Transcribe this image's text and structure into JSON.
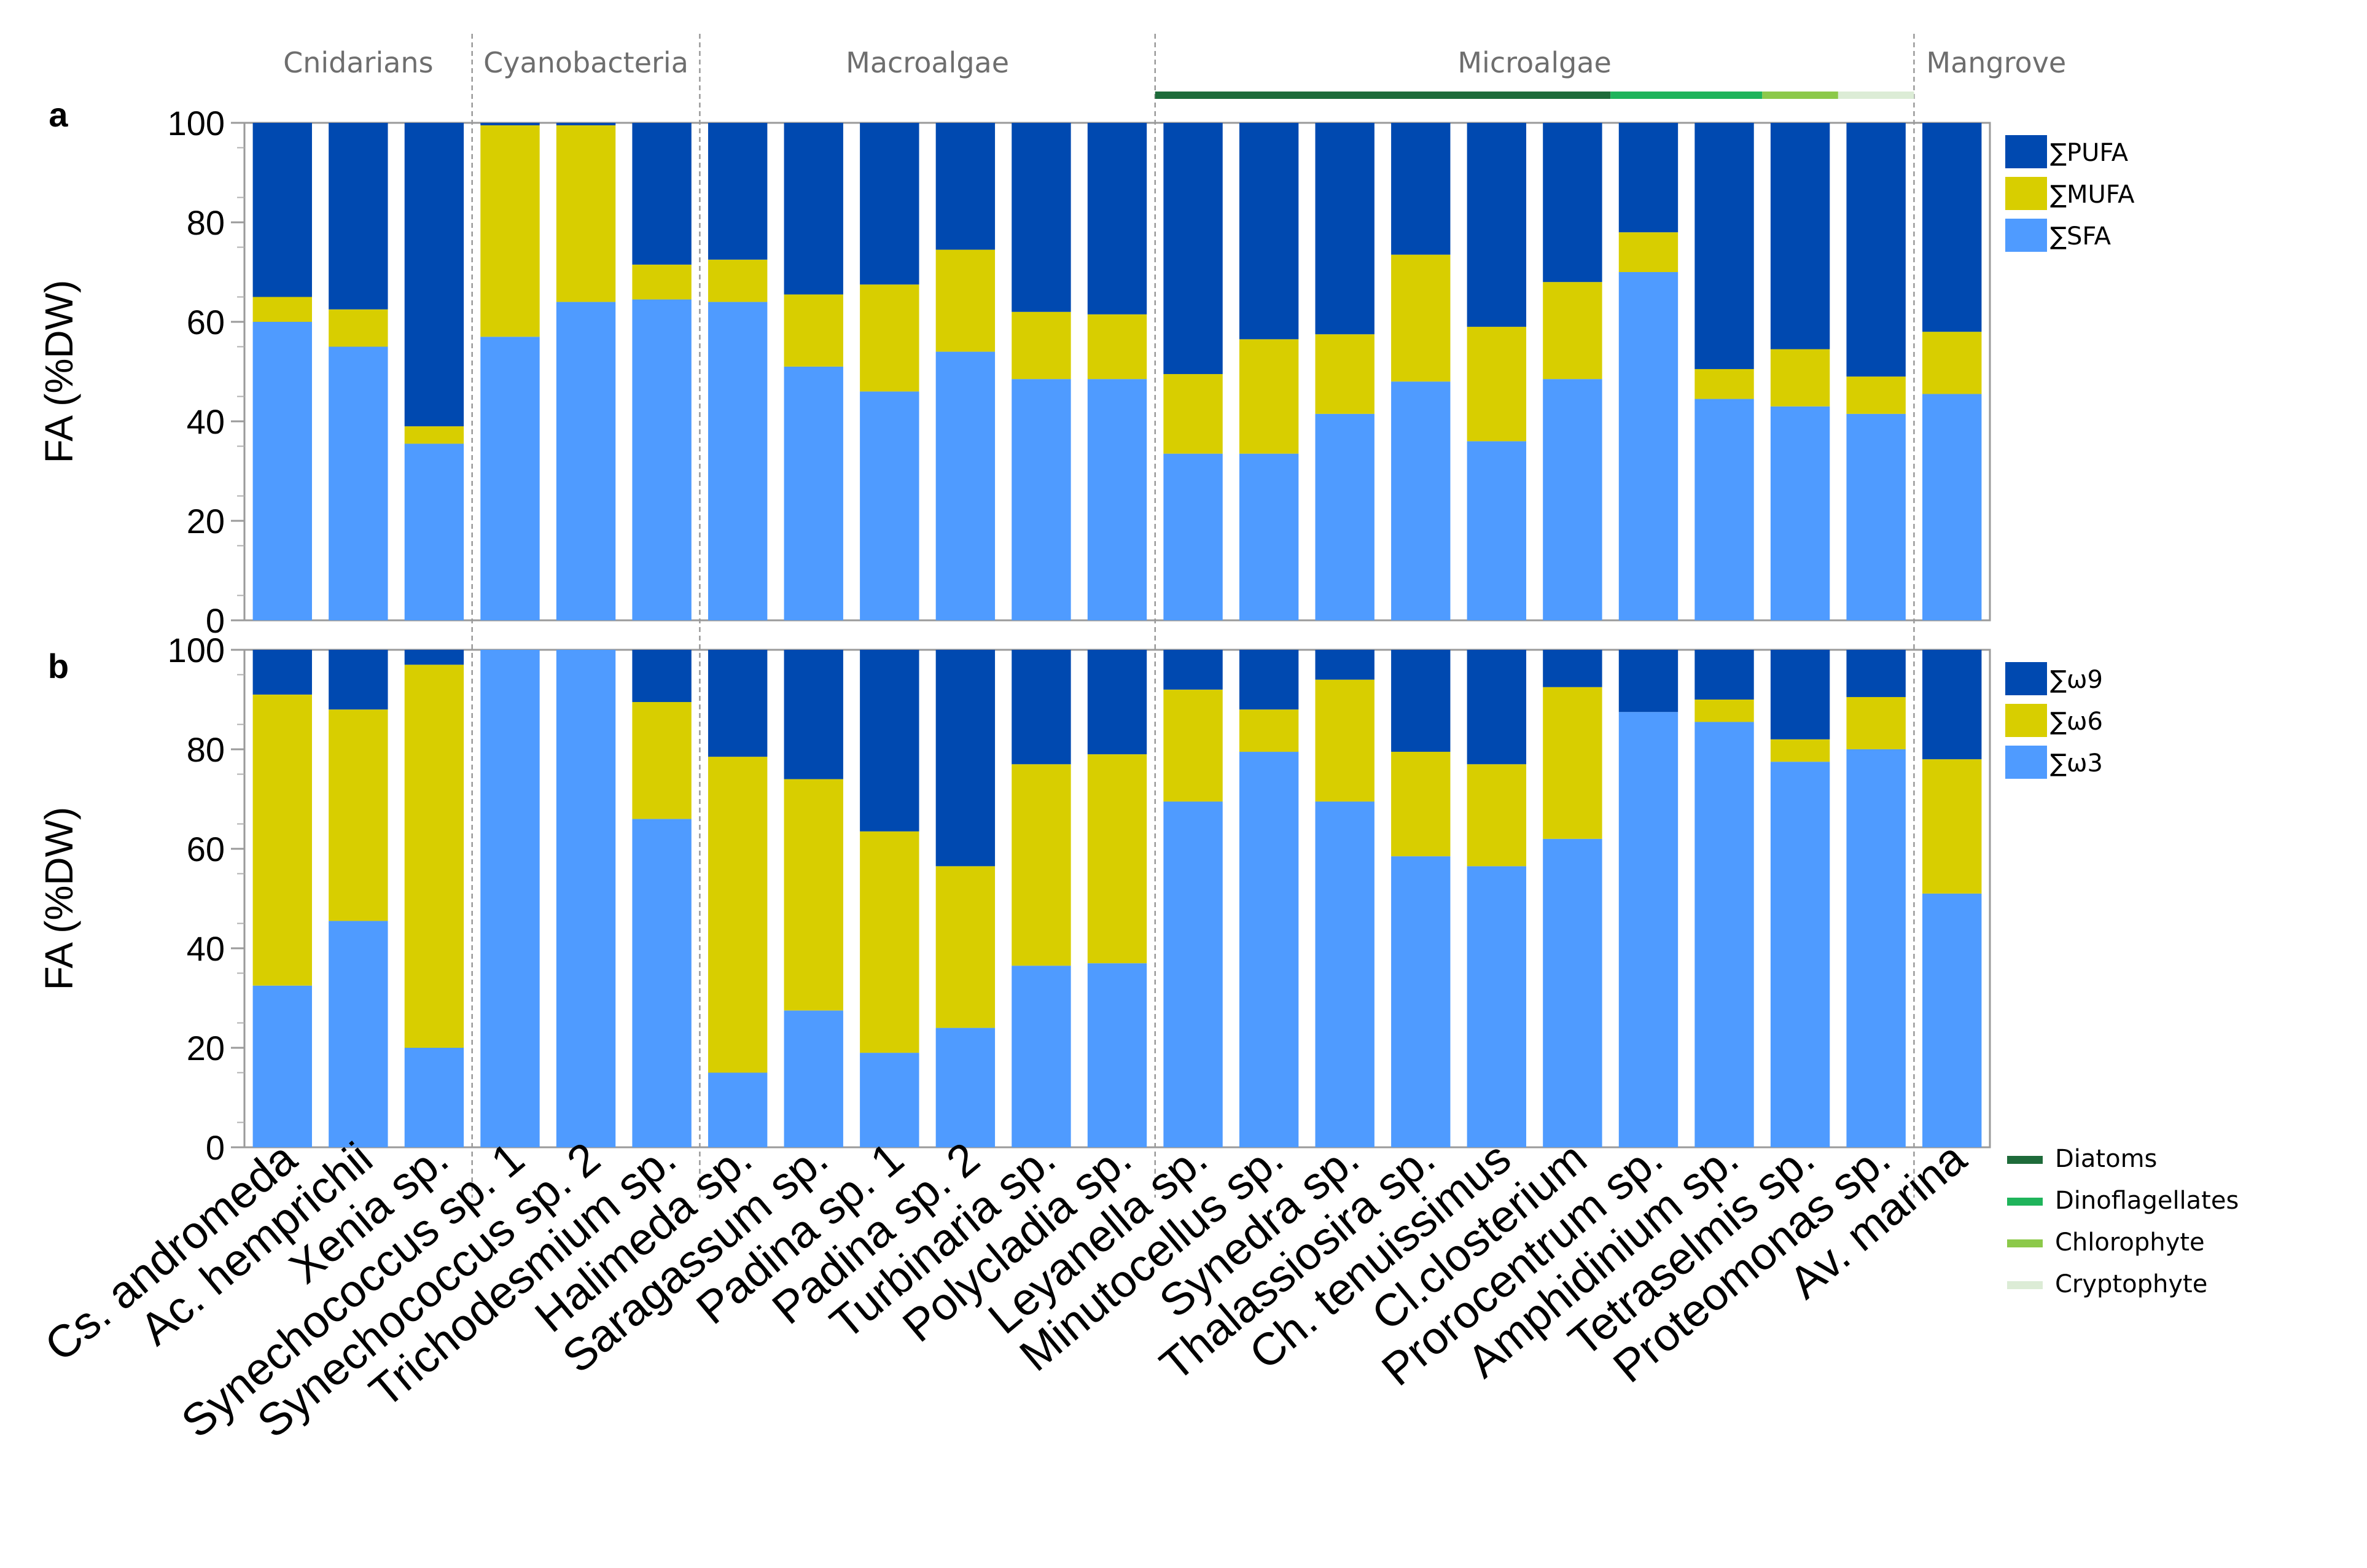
{
  "chart_data": {
    "type": "bar",
    "stacked": true,
    "categories": [
      "Cs. andromeda",
      "Ac. hemprichii",
      "Xenia sp.",
      "Synechococcus sp. 1",
      "Synechococcus sp. 2",
      "Trichodesmium sp.",
      "Halimeda sp.",
      "Saragassum sp.",
      "Padina sp. 1",
      "Padina sp. 2",
      "Turbinaria sp.",
      "Polycladia sp.",
      "Leyanella sp.",
      "Minutocellus sp.",
      "Synedra sp.",
      "Thalassiosira sp.",
      "Ch. tenuissimus",
      "Cl.closterium",
      "Prorocentrum sp.",
      "Amphidinium sp.",
      "Tetraselmis sp.",
      "Proteomonas sp.",
      "Av. marina"
    ],
    "groups": [
      {
        "name": "Cnidarians",
        "start": 0,
        "end": 2
      },
      {
        "name": "Cyanobacteria",
        "start": 3,
        "end": 5
      },
      {
        "name": "Macroalgae",
        "start": 6,
        "end": 11
      },
      {
        "name": "Microalgae",
        "start": 12,
        "end": 21
      },
      {
        "name": "Mangrove",
        "start": 22,
        "end": 22
      }
    ],
    "microalgae_classes": [
      {
        "name": "Diatoms",
        "color": "#1e6b3a",
        "start": 12,
        "end": 17
      },
      {
        "name": "Dinoflagellates",
        "color": "#1fb45b",
        "start": 18,
        "end": 19
      },
      {
        "name": "Chlorophyte",
        "color": "#8cc94a",
        "start": 20,
        "end": 20
      },
      {
        "name": "Cryptophyte",
        "color": "#dcecd6",
        "start": 21,
        "end": 21
      }
    ],
    "panels": [
      {
        "tag": "a",
        "ylabel": "FA (%DW)",
        "ylim": [
          0,
          100
        ],
        "yticks": [
          0,
          20,
          40,
          60,
          80,
          100
        ],
        "series": [
          {
            "name": "∑SFA",
            "color": "#4f9bff",
            "values": [
              60,
              55,
              35.5,
              57,
              64,
              64.5,
              64,
              51,
              46,
              54,
              48.5,
              48.5,
              33.5,
              33.5,
              41.5,
              48,
              36,
              48.5,
              70,
              44.5,
              43,
              41.5,
              45.5
            ]
          },
          {
            "name": "∑MUFA",
            "color": "#d8ce00",
            "values": [
              5,
              7.5,
              3.5,
              42.5,
              35.5,
              7,
              8.5,
              14.5,
              21.5,
              20.5,
              13.5,
              13,
              16,
              23,
              16,
              25.5,
              23,
              19.5,
              8,
              6,
              11.5,
              7.5,
              12.5
            ]
          },
          {
            "name": "∑PUFA",
            "color": "#0049b0",
            "values": [
              35,
              37.5,
              61,
              0.5,
              0.5,
              28.5,
              27.5,
              34.5,
              32.5,
              25.5,
              38,
              38.5,
              50.5,
              43.5,
              42.5,
              26.5,
              41,
              32,
              22,
              49.5,
              45.5,
              51,
              42
            ]
          }
        ]
      },
      {
        "tag": "b",
        "ylabel": "FA (%DW)",
        "ylim": [
          0,
          100
        ],
        "yticks": [
          0,
          20,
          40,
          60,
          80,
          100
        ],
        "series": [
          {
            "name": "∑ω3",
            "color": "#4f9bff",
            "values": [
              32.5,
              45.5,
              20,
              100,
              100,
              66,
              15,
              27.5,
              19,
              24,
              36.5,
              37,
              69.5,
              79.5,
              69.5,
              58.5,
              56.5,
              62,
              87.5,
              85.5,
              77.5,
              80,
              51
            ]
          },
          {
            "name": "∑ω6",
            "color": "#d8ce00",
            "values": [
              58.5,
              42.5,
              77,
              0,
              0,
              23.5,
              63.5,
              46.5,
              44.5,
              32.5,
              40.5,
              42,
              22.5,
              8.5,
              24.5,
              21,
              20.5,
              30.5,
              0,
              4.5,
              4.5,
              10.5,
              27
            ]
          },
          {
            "name": "∑ω9",
            "color": "#0049b0",
            "values": [
              9,
              12,
              3,
              0,
              0,
              10.5,
              21.5,
              26,
              36.5,
              43.5,
              23,
              21,
              8,
              12,
              6,
              20.5,
              23,
              7.5,
              12.5,
              10,
              18,
              9.5,
              22
            ]
          }
        ]
      }
    ]
  }
}
